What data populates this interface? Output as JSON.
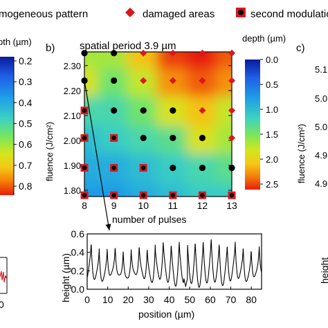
{
  "legend": {
    "items": [
      {
        "label": "mogeneous pattern",
        "marker": "circle",
        "color": "#000000"
      },
      {
        "label": "damaged areas",
        "marker": "diamond",
        "color": "#d7191c"
      },
      {
        "label": "second modulation",
        "marker": "square",
        "color": "#d7191c"
      }
    ]
  },
  "left_panel": {
    "colorbar_title": "pth (µm)",
    "colorbar_ticks": [
      "0.2",
      "0.3",
      "0.4",
      "0.5",
      "0.6",
      "0.7",
      "0.8"
    ]
  },
  "right_panel": {
    "label": "c)",
    "ylabel": "fluence (J/cm²)",
    "ticks": [
      "5.1",
      "5.0",
      "5.0",
      "4.9",
      "4.9"
    ],
    "inset_ylabel": "height"
  },
  "panel_b": {
    "label": "b)",
    "title": "spatial period 3.9 µm",
    "colorbar_title": "depth (µm)",
    "colorbar_ticks": [
      "0.0",
      "0.5",
      "1.0",
      "1.5",
      "2.0",
      "2.5"
    ]
  },
  "colors": {
    "marker_red": "#d7191c",
    "marker_black": "#000000",
    "colormap": [
      "#0a1a9c",
      "#1f5fe6",
      "#1ea0e6",
      "#3cd2c0",
      "#7ae65a",
      "#d4e61e",
      "#f5c814",
      "#f57d0a",
      "#e61e0a"
    ]
  },
  "chart_data": [
    {
      "type": "heatmap",
      "title": "spatial period 3.9 µm",
      "xlabel": "number of pulses",
      "ylabel": "fluence (J/cm²)",
      "x": [
        8,
        9,
        10,
        11,
        12,
        13
      ],
      "y": [
        1.78,
        1.89,
        2.01,
        2.12,
        2.24,
        2.35
      ],
      "xticks": [
        "8",
        "9",
        "10",
        "11",
        "12",
        "13"
      ],
      "yticks": [
        "1.80",
        "1.90",
        "2.00",
        "2.10",
        "2.20",
        "2.30"
      ],
      "xlim": [
        8,
        13
      ],
      "ylim": [
        1.775,
        2.355
      ],
      "z_label": "depth (µm)",
      "zlim": [
        0,
        2.5
      ],
      "z": [
        [
          0.6,
          0.6,
          0.7,
          0.8,
          0.9,
          0.9
        ],
        [
          0.7,
          0.7,
          0.8,
          0.9,
          1.0,
          1.1
        ],
        [
          0.8,
          0.9,
          1.0,
          1.1,
          1.6,
          1.4
        ],
        [
          1.0,
          1.0,
          1.2,
          1.6,
          1.9,
          1.5
        ],
        [
          1.6,
          1.2,
          1.5,
          2.1,
          2.3,
          2.1
        ],
        [
          1.4,
          1.4,
          1.9,
          2.4,
          2.5,
          2.3
        ]
      ],
      "markers": [
        {
          "x": 8,
          "y": 2.35,
          "type": "homogeneous"
        },
        {
          "x": 9,
          "y": 2.35,
          "type": "homogeneous"
        },
        {
          "x": 10,
          "y": 2.35,
          "type": "damaged"
        },
        {
          "x": 11,
          "y": 2.35,
          "type": "damaged"
        },
        {
          "x": 12,
          "y": 2.35,
          "type": "damaged"
        },
        {
          "x": 13,
          "y": 2.35,
          "type": "damaged"
        },
        {
          "x": 8,
          "y": 2.24,
          "type": "homogeneous"
        },
        {
          "x": 9,
          "y": 2.24,
          "type": "homogeneous"
        },
        {
          "x": 10,
          "y": 2.24,
          "type": "damaged"
        },
        {
          "x": 11,
          "y": 2.24,
          "type": "damaged"
        },
        {
          "x": 12,
          "y": 2.24,
          "type": "damaged"
        },
        {
          "x": 13,
          "y": 2.24,
          "type": "damaged"
        },
        {
          "x": 8,
          "y": 2.12,
          "type": "second_modulation"
        },
        {
          "x": 9,
          "y": 2.12,
          "type": "homogeneous"
        },
        {
          "x": 10,
          "y": 2.12,
          "type": "homogeneous"
        },
        {
          "x": 11,
          "y": 2.12,
          "type": "homogeneous"
        },
        {
          "x": 12,
          "y": 2.12,
          "type": "damaged"
        },
        {
          "x": 13,
          "y": 2.12,
          "type": "damaged"
        },
        {
          "x": 8,
          "y": 2.01,
          "type": "second_modulation"
        },
        {
          "x": 9,
          "y": 2.01,
          "type": "second_modulation"
        },
        {
          "x": 10,
          "y": 2.01,
          "type": "homogeneous"
        },
        {
          "x": 11,
          "y": 2.01,
          "type": "homogeneous"
        },
        {
          "x": 12,
          "y": 2.01,
          "type": "homogeneous"
        },
        {
          "x": 13,
          "y": 2.01,
          "type": "damaged"
        },
        {
          "x": 8,
          "y": 1.89,
          "type": "second_modulation"
        },
        {
          "x": 9,
          "y": 1.89,
          "type": "second_modulation"
        },
        {
          "x": 10,
          "y": 1.89,
          "type": "second_modulation"
        },
        {
          "x": 11,
          "y": 1.89,
          "type": "homogeneous"
        },
        {
          "x": 12,
          "y": 1.89,
          "type": "homogeneous"
        },
        {
          "x": 13,
          "y": 1.89,
          "type": "homogeneous"
        },
        {
          "x": 8,
          "y": 1.78,
          "type": "second_modulation"
        },
        {
          "x": 9,
          "y": 1.78,
          "type": "second_modulation"
        },
        {
          "x": 10,
          "y": 1.78,
          "type": "second_modulation"
        },
        {
          "x": 11,
          "y": 1.78,
          "type": "second_modulation"
        },
        {
          "x": 12,
          "y": 1.78,
          "type": "second_modulation"
        },
        {
          "x": 13,
          "y": 1.78,
          "type": "second_modulation"
        }
      ],
      "highlighted_point": {
        "x": 8,
        "y": 2.24
      }
    },
    {
      "type": "line",
      "xlabel": "position (µm)",
      "ylabel": "height (µm)",
      "xlim": [
        0,
        85
      ],
      "ylim": [
        0,
        0.6
      ],
      "xticks": [
        "0",
        "10",
        "20",
        "30",
        "40",
        "50",
        "60",
        "70",
        "80"
      ],
      "yticks": [
        "0.0",
        "0.2",
        "0.4",
        "0.6"
      ],
      "profile": {
        "period": 3.9,
        "n_periods": 22,
        "peak": 0.5,
        "trough": 0.1
      },
      "dip": {
        "x": 48,
        "y": 0.03
      }
    }
  ]
}
